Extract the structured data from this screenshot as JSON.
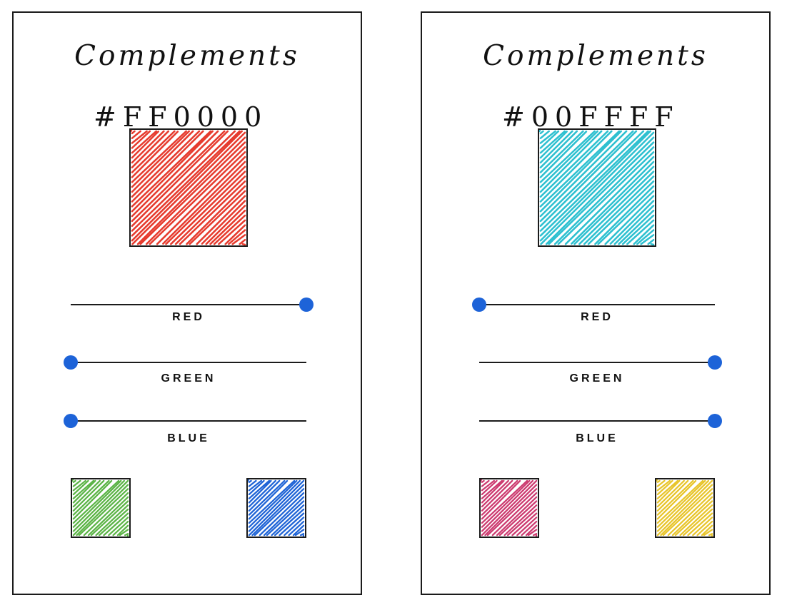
{
  "screens": [
    {
      "title": "Complements",
      "hex": "#FF0000",
      "main_color": "#e63b2e",
      "sliders": [
        {
          "label": "RED",
          "value": 255
        },
        {
          "label": "GREEN",
          "value": 0
        },
        {
          "label": "BLUE",
          "value": 0
        }
      ],
      "complements": [
        "#5cb447",
        "#1f64d6"
      ]
    },
    {
      "title": "Complements",
      "hex": "#00FFFF",
      "main_color": "#2ec0d0",
      "sliders": [
        {
          "label": "RED",
          "value": 0
        },
        {
          "label": "GREEN",
          "value": 255
        },
        {
          "label": "BLUE",
          "value": 255
        }
      ],
      "complements": [
        "#cc3b70",
        "#e8c52c"
      ]
    }
  ],
  "slider_max": 255,
  "knob_color": "#1d63d8",
  "icons": {
    "slider_knob": "filled-circle",
    "swatch_fill": "scribble-hatch"
  }
}
